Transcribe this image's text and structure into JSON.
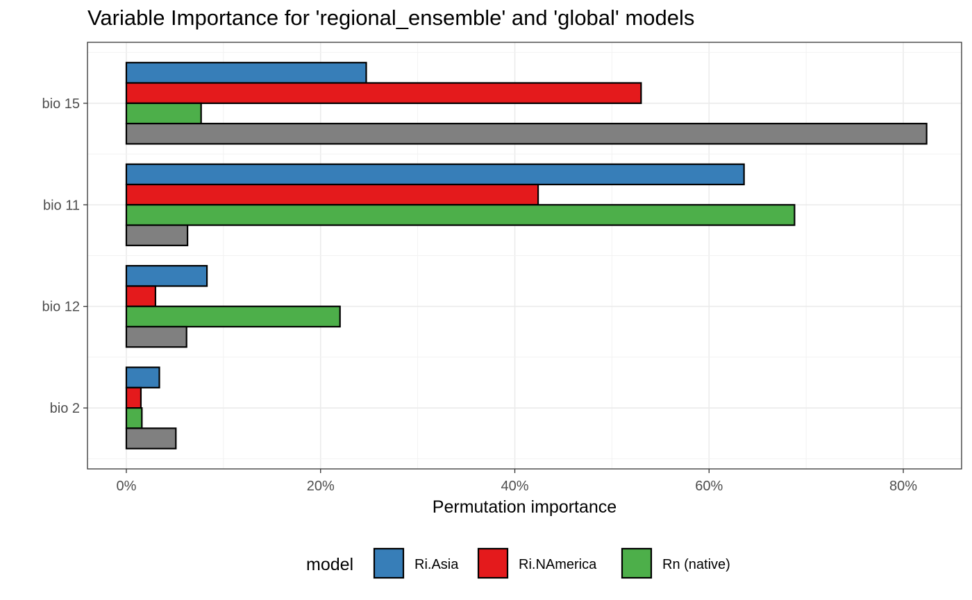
{
  "chart_data": {
    "type": "bar",
    "orientation": "horizontal",
    "title": "Variable Importance for 'regional_ensemble' and 'global' models",
    "xlabel": "Permutation importance",
    "ylabel": "",
    "xlim": [
      -0.04,
      0.86
    ],
    "x_ticks": [
      0,
      0.2,
      0.4,
      0.6,
      0.8
    ],
    "x_tick_labels": [
      "0%",
      "20%",
      "40%",
      "60%",
      "80%"
    ],
    "categories": [
      "bio 15",
      "bio 11",
      "bio 12",
      "bio 2"
    ],
    "series": [
      {
        "name": "Ri.Asia",
        "color": "#377EB8",
        "values": [
          0.247,
          0.636,
          0.083,
          0.034
        ]
      },
      {
        "name": "Ri.NAmerica",
        "color": "#E41A1C",
        "values": [
          0.53,
          0.424,
          0.03,
          0.015
        ]
      },
      {
        "name": "Rn (native)",
        "color": "#4DAF4A",
        "values": [
          0.077,
          0.688,
          0.22,
          0.016
        ]
      },
      {
        "color": "#808080",
        "values": [
          0.824,
          0.063,
          0.062,
          0.051
        ]
      }
    ],
    "grid": true,
    "legend": {
      "title": "model",
      "position": "bottom"
    }
  }
}
